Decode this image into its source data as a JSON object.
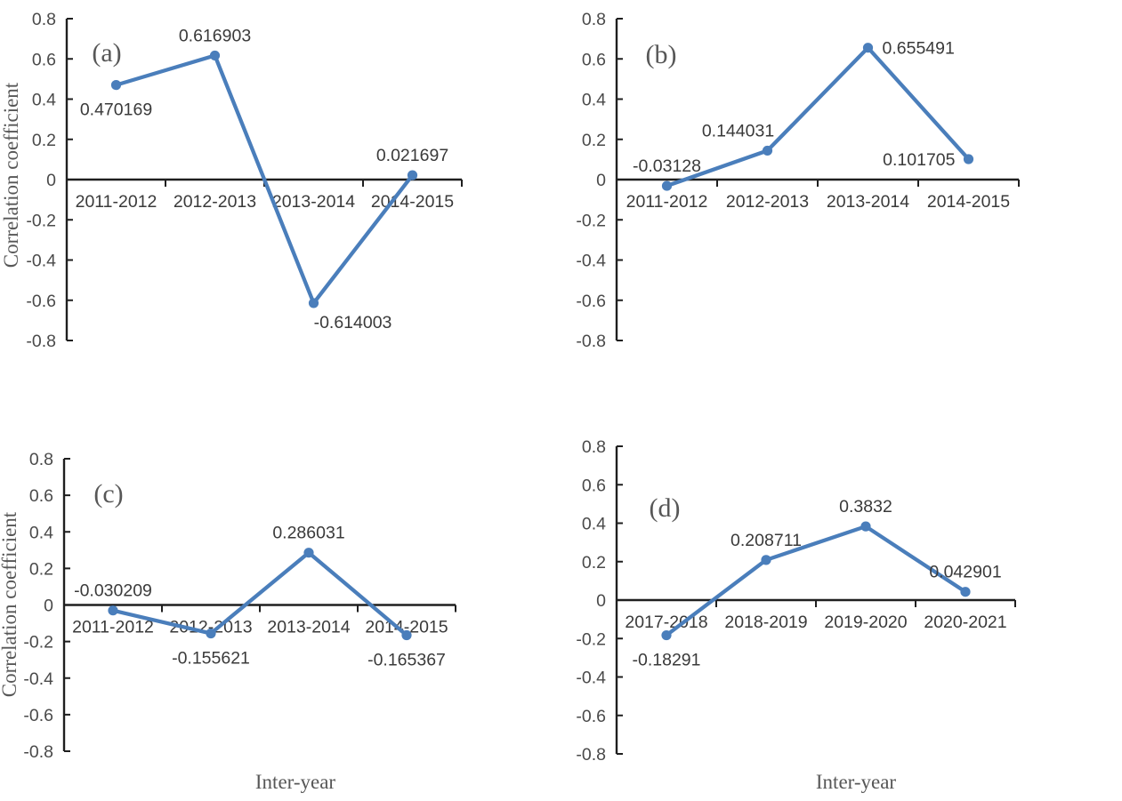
{
  "figure": {
    "y_axis_title": "Correlation coefficient",
    "x_axis_title": "Inter-year",
    "panel_letters": [
      "(a)",
      "(b)",
      "(c)",
      "(d)"
    ]
  },
  "style": {
    "accent_blue": "#4a7ebb",
    "axis_color": "#1f1f1f",
    "tick_label_color": "#4a4a4a",
    "data_label_color": "#3a3a3a",
    "title_color": "#575757",
    "background": "#ffffff"
  },
  "chart_data": [
    {
      "type": "line",
      "panel_label": "(a)",
      "title": "",
      "xlabel": "",
      "ylabel": "Correlation coefficient",
      "categories": [
        "2011-2012",
        "2012-2013",
        "2013-2014",
        "2014-2015"
      ],
      "values": [
        0.470169,
        0.616903,
        -0.614003,
        0.021697
      ],
      "point_labels": [
        "0.470169",
        "0.616903",
        "-0.614003",
        "0.021697"
      ],
      "label_placement": [
        "below",
        "above",
        "below-right",
        "above"
      ],
      "ylim": [
        -0.8,
        0.8
      ],
      "ytick_step": 0.2,
      "ytick_labels": [
        "0.8",
        "0.6",
        "0.4",
        "0.2",
        "0",
        "-0.2",
        "-0.4",
        "-0.6",
        "-0.8"
      ],
      "grid": false,
      "legend": "none"
    },
    {
      "type": "line",
      "panel_label": "(b)",
      "title": "",
      "xlabel": "",
      "ylabel": "",
      "categories": [
        "2011-2012",
        "2012-2013",
        "2013-2014",
        "2014-2015"
      ],
      "values": [
        -0.03128,
        0.144031,
        0.655491,
        0.101705
      ],
      "point_labels": [
        "-0.03128",
        "0.144031",
        "0.655491",
        "0.101705"
      ],
      "label_placement": [
        "above",
        "above-left",
        "right",
        "left"
      ],
      "ylim": [
        -0.8,
        0.8
      ],
      "ytick_step": 0.2,
      "ytick_labels": [
        "0.8",
        "0.6",
        "0.4",
        "0.2",
        "0",
        "-0.2",
        "-0.4",
        "-0.6",
        "-0.8"
      ],
      "grid": false,
      "legend": "none"
    },
    {
      "type": "line",
      "panel_label": "(c)",
      "title": "",
      "xlabel": "Inter-year",
      "ylabel": "Correlation coefficient",
      "categories": [
        "2011-2012",
        "2012-2013",
        "2013-2014",
        "2014-2015"
      ],
      "values": [
        -0.030209,
        -0.155621,
        0.286031,
        -0.165367
      ],
      "point_labels": [
        "-0.030209",
        "-0.155621",
        "0.286031",
        "-0.165367"
      ],
      "label_placement": [
        "above",
        "below",
        "above",
        "below"
      ],
      "ylim": [
        -0.8,
        0.8
      ],
      "ytick_step": 0.2,
      "ytick_labels": [
        "0.8",
        "0.6",
        "0.4",
        "0.2",
        "0",
        "-0.2",
        "-0.4",
        "-0.6",
        "-0.8"
      ],
      "grid": false,
      "legend": "none"
    },
    {
      "type": "line",
      "panel_label": "(d)",
      "title": "",
      "xlabel": "Inter-year",
      "ylabel": "",
      "categories": [
        "2017-2018",
        "2018-2019",
        "2019-2020",
        "2020-2021"
      ],
      "values": [
        -0.18291,
        0.208711,
        0.3832,
        0.042901
      ],
      "point_labels": [
        "-0.18291",
        "0.208711",
        "0.3832",
        "0.042901"
      ],
      "label_placement": [
        "below",
        "above",
        "above",
        "above"
      ],
      "ylim": [
        -0.8,
        0.8
      ],
      "ytick_step": 0.2,
      "ytick_labels": [
        "0.8",
        "0.6",
        "0.4",
        "0.2",
        "0",
        "-0.2",
        "-0.4",
        "-0.6",
        "-0.8"
      ],
      "grid": false,
      "legend": "none"
    }
  ]
}
